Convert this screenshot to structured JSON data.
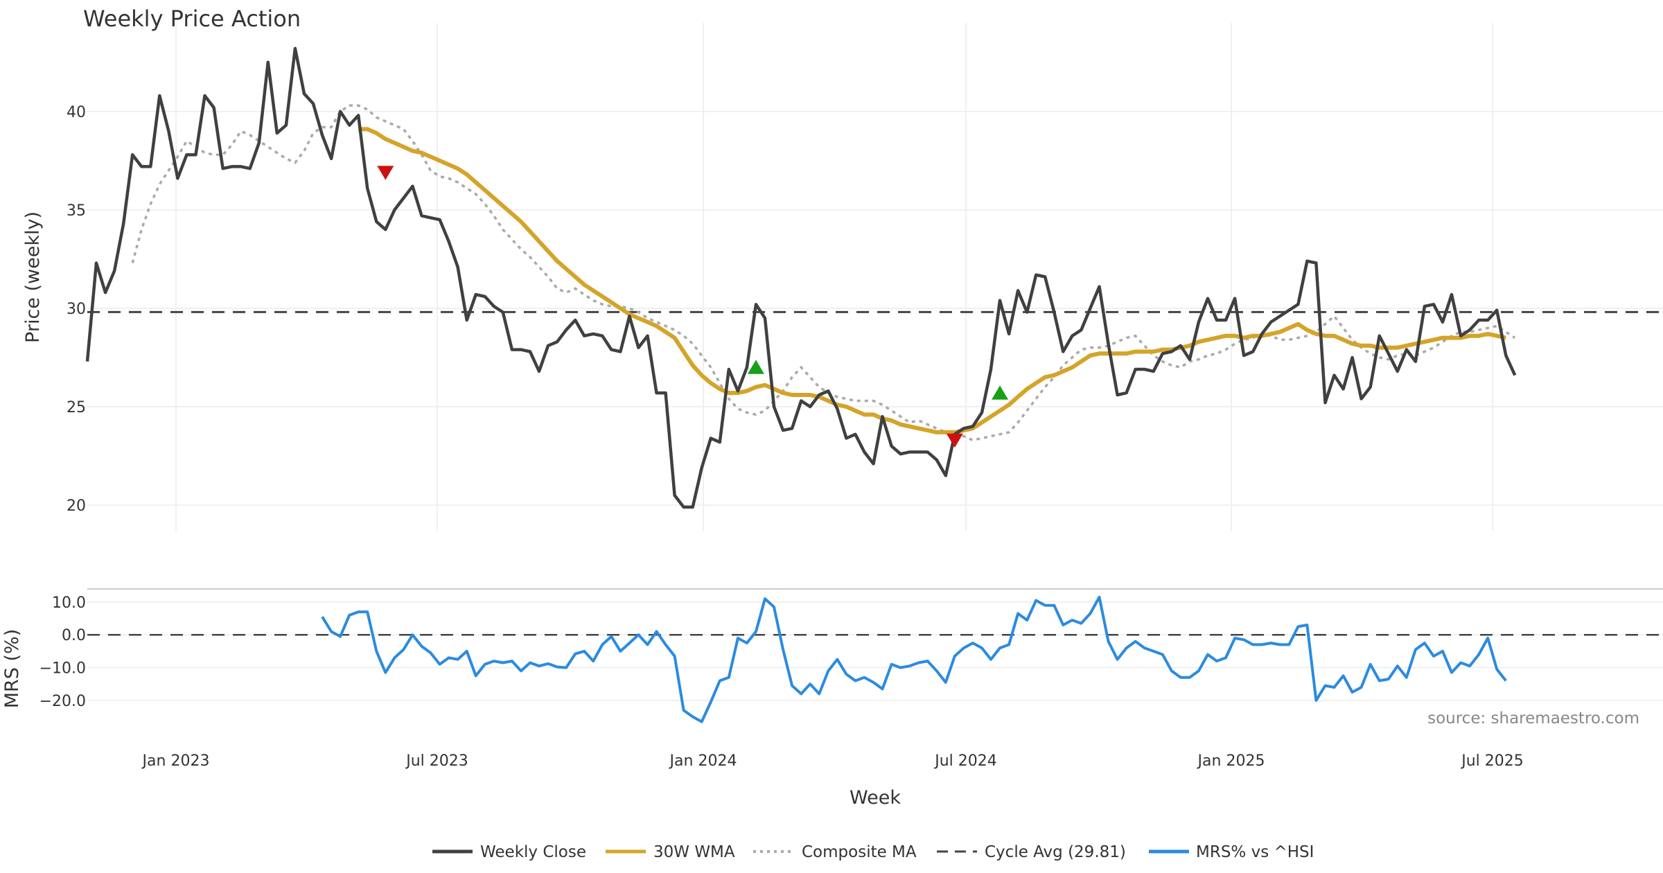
{
  "chart_data": {
    "type": "line",
    "title": "Weekly Price Action",
    "xlabel": "Week",
    "x_ticks": [
      "Jan 2023",
      "Jul 2023",
      "Jan 2024",
      "Jul 2024",
      "Jan 2025",
      "Jul 2025"
    ],
    "source": "source: sharemaestro.com",
    "top_panel": {
      "ylabel": "Price (weekly)",
      "ylim": [
        18.7,
        44.5
      ],
      "yticks": [
        20,
        25,
        30,
        35,
        40
      ],
      "cycle_avg": 29.81,
      "close": [
        27.3,
        32.3,
        30.8,
        31.9,
        34.3,
        37.8,
        37.2,
        37.2,
        40.8,
        39.0,
        36.6,
        37.8,
        37.8,
        40.8,
        40.2,
        37.1,
        37.2,
        37.2,
        37.1,
        38.4,
        42.5,
        38.9,
        39.3,
        43.2,
        40.9,
        40.4,
        38.8,
        37.6,
        40.0,
        39.3,
        39.8,
        36.1,
        34.4,
        34.0,
        35.0,
        35.6,
        36.2,
        34.7,
        34.6,
        34.5,
        33.4,
        32.1,
        29.4,
        30.7,
        30.6,
        30.1,
        29.8,
        27.9,
        27.9,
        27.8,
        26.8,
        28.1,
        28.3,
        28.9,
        29.4,
        28.6,
        28.7,
        28.6,
        27.9,
        27.8,
        29.6,
        28.0,
        28.6,
        25.7,
        25.7,
        20.5,
        19.9,
        19.9,
        21.9,
        23.4,
        23.2,
        26.9,
        25.8,
        27.0,
        30.2,
        29.5,
        25.0,
        23.8,
        23.9,
        25.3,
        25.0,
        25.6,
        25.8,
        24.9,
        23.4,
        23.6,
        22.7,
        22.1,
        24.5,
        23.0,
        22.6,
        22.7,
        22.7,
        22.7,
        22.3,
        21.5,
        23.6,
        23.9,
        24.0,
        24.7,
        26.9,
        30.4,
        28.7,
        30.9,
        29.8,
        31.7,
        31.6,
        29.8,
        27.8,
        28.6,
        28.9,
        30.0,
        31.1,
        28.2,
        25.6,
        25.7,
        26.9,
        26.9,
        26.8,
        27.7,
        27.8,
        28.1,
        27.4,
        29.3,
        30.5,
        29.4,
        29.4,
        30.5,
        27.6,
        27.8,
        28.7,
        29.3,
        29.6,
        29.9,
        30.2,
        32.4,
        32.3,
        25.2,
        26.6,
        25.9,
        27.5,
        25.4,
        26.0,
        28.6,
        27.7,
        26.8,
        27.9,
        27.3,
        30.1,
        30.2,
        29.3,
        30.7,
        28.6,
        28.9,
        29.4,
        29.4,
        29.9,
        27.6,
        26.6
      ],
      "wma_30": {
        "start_index": 30,
        "values": [
          39.1,
          39.1,
          38.9,
          38.6,
          38.4,
          38.2,
          38.0,
          37.9,
          37.7,
          37.5,
          37.3,
          37.1,
          36.8,
          36.4,
          36.0,
          35.6,
          35.2,
          34.8,
          34.4,
          33.9,
          33.4,
          32.9,
          32.4,
          32.0,
          31.6,
          31.2,
          30.9,
          30.6,
          30.3,
          30.0,
          29.7,
          29.5,
          29.3,
          29.1,
          28.8,
          28.5,
          27.8,
          27.1,
          26.6,
          26.2,
          25.9,
          25.7,
          25.7,
          25.8,
          26.0,
          26.1,
          25.9,
          25.7,
          25.6,
          25.6,
          25.6,
          25.5,
          25.3,
          25.1,
          25.0,
          24.8,
          24.6,
          24.6,
          24.4,
          24.3,
          24.1,
          24.0,
          23.9,
          23.8,
          23.7,
          23.7,
          23.7,
          23.8,
          23.9,
          24.2,
          24.5,
          24.8,
          25.1,
          25.5,
          25.9,
          26.2,
          26.5,
          26.6,
          26.8,
          27.0,
          27.3,
          27.6,
          27.7,
          27.7,
          27.7,
          27.7,
          27.8,
          27.8,
          27.8,
          27.9,
          27.9,
          28.0,
          28.1,
          28.3,
          28.4,
          28.5,
          28.6,
          28.6,
          28.5,
          28.6,
          28.6,
          28.7,
          28.8,
          29.0,
          29.2,
          28.9,
          28.7,
          28.6,
          28.6,
          28.4,
          28.2,
          28.1,
          28.1,
          28.0,
          28.0,
          28.0,
          28.1,
          28.2,
          28.3,
          28.4,
          28.5,
          28.5,
          28.5,
          28.6,
          28.6,
          28.7,
          28.6,
          28.5
        ]
      },
      "composite_ma": {
        "start_index": 5,
        "values": [
          32.3,
          34.0,
          35.3,
          36.3,
          37.0,
          37.7,
          38.5,
          38.2,
          37.9,
          37.8,
          37.8,
          38.3,
          39.0,
          38.8,
          38.5,
          38.2,
          37.9,
          37.6,
          37.4,
          38.0,
          38.9,
          39.2,
          39.2,
          40.0,
          40.3,
          40.3,
          40.1,
          39.7,
          39.5,
          39.3,
          39.1,
          38.5,
          37.8,
          37.0,
          36.7,
          36.6,
          36.4,
          36.1,
          35.8,
          35.3,
          34.7,
          34.0,
          33.5,
          33.0,
          32.6,
          32.1,
          31.6,
          31.0,
          30.8,
          31.0,
          30.7,
          30.4,
          30.2,
          30.1,
          30.1,
          30.0,
          29.8,
          29.5,
          29.3,
          29.1,
          28.9,
          28.6,
          28.2,
          27.6,
          27.0,
          26.2,
          25.4,
          24.9,
          24.7,
          24.6,
          24.8,
          25.3,
          25.8,
          26.5,
          27.0,
          26.5,
          26.0,
          25.7,
          25.5,
          25.4,
          25.3,
          25.3,
          25.3,
          25.1,
          24.8,
          24.5,
          24.2,
          24.3,
          24.1,
          23.9,
          23.7,
          23.6,
          23.5,
          23.3,
          23.4,
          23.5,
          23.6,
          23.7,
          24.2,
          24.8,
          25.4,
          26.0,
          26.5,
          27.1,
          27.5,
          27.9,
          28.0,
          28.0,
          28.1,
          28.3,
          28.5,
          28.6,
          28.1,
          27.6,
          27.3,
          27.1,
          27.0,
          27.3,
          27.4,
          27.6,
          27.7,
          27.9,
          28.2,
          28.4,
          28.5,
          28.7,
          28.6,
          28.4,
          28.4,
          28.5,
          28.6,
          28.8,
          29.2,
          29.6,
          29.0,
          28.4,
          28.0,
          27.7,
          27.5,
          27.4,
          27.6,
          27.7,
          27.6,
          27.8,
          28.0,
          28.3,
          28.6,
          28.8,
          28.8,
          28.9,
          29.0,
          29.1,
          28.8,
          28.5
        ]
      },
      "markers": [
        {
          "type": "sell",
          "index": 33,
          "value": 36.9
        },
        {
          "type": "buy",
          "index": 74,
          "value": 27.0
        },
        {
          "type": "sell",
          "index": 96,
          "value": 23.3
        },
        {
          "type": "buy",
          "index": 101,
          "value": 25.7
        }
      ]
    },
    "bottom_panel": {
      "ylabel": "MRS (%)",
      "ylim": [
        -27,
        14
      ],
      "yticks": [
        10.0,
        0.0,
        -10.0,
        -20.0
      ],
      "tick_labels": [
        "10.0",
        "0.0",
        "−10.0",
        "−20.0"
      ],
      "mrs": {
        "start_index": 26,
        "values": [
          5.5,
          1.0,
          -0.5,
          6.0,
          7.0,
          7.0,
          -5.0,
          -11.5,
          -7.0,
          -4.5,
          0.0,
          -3.5,
          -5.5,
          -9.0,
          -7.0,
          -7.5,
          -5.0,
          -12.5,
          -9.0,
          -8.0,
          -8.5,
          -8.0,
          -11.0,
          -8.5,
          -9.5,
          -8.8,
          -9.8,
          -10.0,
          -5.8,
          -5.0,
          -8.0,
          -3.0,
          -0.5,
          -5.0,
          -2.5,
          0.0,
          -3.0,
          1.0,
          -3.0,
          -6.5,
          -23.0,
          -25.0,
          -26.5,
          -20.5,
          -14.0,
          -13.0,
          -1.0,
          -2.5,
          1.0,
          11.0,
          8.5,
          -4.5,
          -15.5,
          -18.0,
          -15.0,
          -18.0,
          -11.0,
          -7.5,
          -12.0,
          -14.0,
          -13.0,
          -14.5,
          -16.5,
          -9.0,
          -10.0,
          -9.5,
          -8.5,
          -8.0,
          -11.0,
          -14.5,
          -6.5,
          -4.0,
          -2.5,
          -4.0,
          -7.5,
          -4.0,
          -3.0,
          6.5,
          4.5,
          10.5,
          9.0,
          9.0,
          3.0,
          4.5,
          3.5,
          6.5,
          11.5,
          -2.0,
          -7.5,
          -4.0,
          -2.0,
          -4.0,
          -5.0,
          -6.0,
          -11.0,
          -13.0,
          -13.0,
          -11.0,
          -6.0,
          -8.0,
          -7.0,
          -1.0,
          -1.5,
          -3.0,
          -3.0,
          -2.5,
          -3.0,
          -3.0,
          2.5,
          3.0,
          -20.0,
          -15.5,
          -16.0,
          -12.5,
          -17.5,
          -16.0,
          -9.0,
          -14.0,
          -13.5,
          -9.5,
          -13.0,
          -4.5,
          -2.5,
          -6.5,
          -5.0,
          -11.5,
          -8.5,
          -9.5,
          -6.0,
          -1.0,
          -10.5,
          -14.0
        ]
      }
    },
    "legend": {
      "position": "bottom-center",
      "entries": [
        "Weekly Close",
        "30W WMA",
        "Composite MA",
        "Cycle Avg (29.81)",
        "MRS% vs ^HSI"
      ]
    },
    "colors": {
      "close": "#404040",
      "wma": "#d4a42a",
      "composite": "#aaaaaa",
      "cycle": "#444444",
      "mrs": "#2b8be0",
      "buy": "#18a018",
      "sell": "#cc1111",
      "grid": "#ececec"
    }
  }
}
